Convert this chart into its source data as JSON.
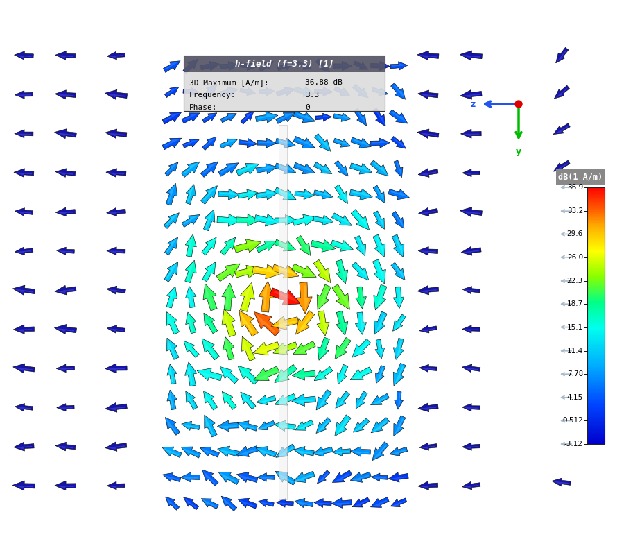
{
  "colorbar_title": "dB(1 A/m)",
  "colorbar_ticks": [
    36.9,
    33.2,
    29.6,
    26.0,
    22.3,
    18.7,
    15.1,
    11.4,
    7.78,
    4.15,
    0.512,
    -3.12
  ],
  "info_title": "h-field (f=3.3) [1]",
  "info_lines": [
    [
      "3D Maximum [A/m]:",
      "36.88 dB"
    ],
    [
      "Frequency:",
      "3.3"
    ],
    [
      "Phase:",
      "0"
    ]
  ],
  "bg_color": "#ffffff",
  "colorbar_vmin": -3.12,
  "colorbar_vmax": 36.9,
  "fig_w": 9.0,
  "fig_h": 8.0,
  "dpi": 100
}
